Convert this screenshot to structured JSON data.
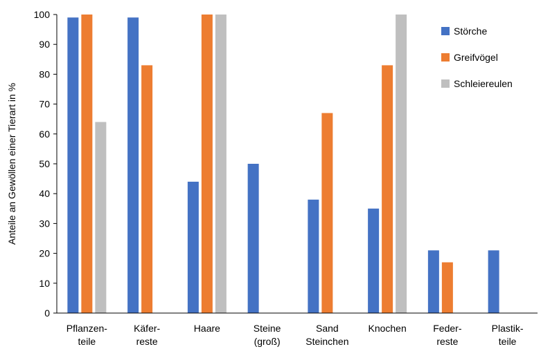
{
  "chart_data": {
    "type": "bar",
    "categories": [
      [
        "Pflanzen-",
        "teile"
      ],
      [
        "Käfer-",
        "reste"
      ],
      [
        "Haare"
      ],
      [
        "Steine",
        "(groß)"
      ],
      [
        "Sand",
        "Steinchen"
      ],
      [
        "Knochen"
      ],
      [
        "Feder-",
        "reste"
      ],
      [
        "Plastik-",
        "teile"
      ]
    ],
    "series": [
      {
        "name": "Störche",
        "color": "#4472C4",
        "values": [
          99,
          99,
          44,
          50,
          38,
          35,
          21,
          21
        ]
      },
      {
        "name": "Greifvögel",
        "color": "#ED7D31",
        "values": [
          100,
          83,
          100,
          0,
          67,
          83,
          17,
          0
        ]
      },
      {
        "name": "Schleiereulen",
        "color": "#BFBFBF",
        "values": [
          64,
          0,
          100,
          0,
          0,
          100,
          0,
          0
        ]
      }
    ],
    "ylabel": "Anteile an Gewöllen einer Tierart in %",
    "ylim": [
      0,
      100
    ],
    "yticks": [
      0,
      10,
      20,
      30,
      40,
      50,
      60,
      70,
      80,
      90,
      100
    ],
    "grid": false,
    "legend_position": "top-right"
  }
}
